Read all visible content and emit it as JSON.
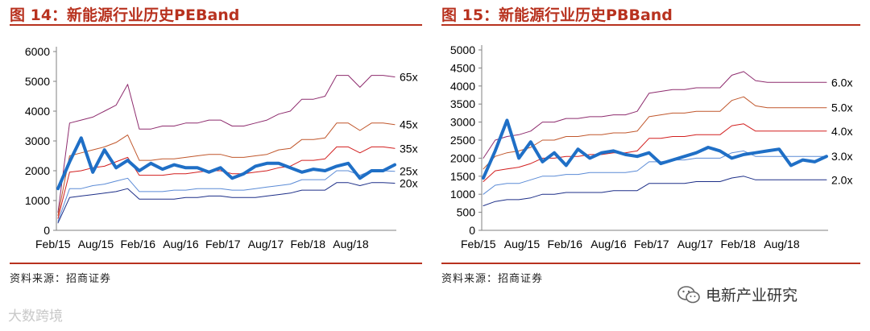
{
  "charts": [
    {
      "title": "图 14：新能源行业历史PEBand",
      "source": "资料来源：招商证券",
      "chart_data": {
        "type": "line",
        "title": "新能源行业历史PEBand",
        "xlabel": "",
        "ylabel": "",
        "ylim": [
          0,
          6000
        ],
        "yticks": [
          0,
          1000,
          2000,
          3000,
          4000,
          5000,
          6000
        ],
        "xticks": [
          "Feb/15",
          "Aug/15",
          "Feb/16",
          "Aug/16",
          "Feb/17",
          "Aug/17",
          "Feb/18",
          "Aug/18"
        ],
        "grid": false,
        "series": [
          {
            "name": "65x",
            "color": "#8e2c6e",
            "width": 1,
            "values": [
              600,
              3600,
              3700,
              3800,
              4000,
              4200,
              4900,
              3400,
              3400,
              3500,
              3500,
              3600,
              3600,
              3700,
              3700,
              3500,
              3500,
              3600,
              3700,
              3900,
              4000,
              4400,
              4400,
              4500,
              5200,
              5200,
              4800,
              5200,
              5200,
              5150
            ]
          },
          {
            "name": "45x",
            "color": "#c0572c",
            "width": 1,
            "values": [
              500,
              2500,
              2600,
              2700,
              2800,
              2950,
              3200,
              2350,
              2350,
              2400,
              2400,
              2450,
              2500,
              2550,
              2550,
              2450,
              2450,
              2500,
              2550,
              2700,
              2750,
              3050,
              3050,
              3100,
              3600,
              3600,
              3350,
              3600,
              3600,
              3550
            ]
          },
          {
            "name": "35x",
            "color": "#d21f1f",
            "width": 1,
            "values": [
              400,
              1950,
              2000,
              2100,
              2150,
              2300,
              2450,
              1850,
              1850,
              1850,
              1900,
              1900,
              1950,
              2000,
              2000,
              1900,
              1900,
              1950,
              2000,
              2100,
              2150,
              2350,
              2350,
              2400,
              2800,
              2800,
              2600,
              2800,
              2800,
              2750
            ]
          },
          {
            "name": "25x",
            "color": "#5b8bd6",
            "width": 1,
            "values": [
              300,
              1400,
              1400,
              1500,
              1550,
              1650,
              1750,
              1300,
              1300,
              1300,
              1350,
              1350,
              1400,
              1400,
              1400,
              1350,
              1350,
              1400,
              1450,
              1500,
              1550,
              1700,
              1700,
              1700,
              2000,
              2000,
              1850,
              2000,
              2000,
              1980
            ]
          },
          {
            "name": "20x",
            "color": "#1d2f88",
            "width": 1,
            "values": [
              250,
              1100,
              1150,
              1200,
              1250,
              1300,
              1400,
              1050,
              1050,
              1050,
              1050,
              1100,
              1100,
              1150,
              1150,
              1100,
              1100,
              1100,
              1150,
              1200,
              1250,
              1350,
              1350,
              1350,
              1600,
              1600,
              1500,
              1600,
              1600,
              1580
            ]
          },
          {
            "name": "",
            "color": "#1f6fc6",
            "width": 4,
            "values": [
              1400,
              2300,
              3100,
              1950,
              2700,
              2100,
              2350,
              2000,
              2250,
              2050,
              2200,
              2100,
              2100,
              1950,
              2100,
              1750,
              1900,
              2150,
              2250,
              2250,
              2100,
              1950,
              2050,
              2000,
              2150,
              2250,
              1750,
              2000,
              2000,
              2200
            ]
          }
        ]
      }
    },
    {
      "title": "图 15：新能源行业历史PBBand",
      "source": "资料来源：招商证券",
      "chart_data": {
        "type": "line",
        "title": "新能源行业历史PBBand",
        "xlabel": "",
        "ylabel": "",
        "ylim": [
          0,
          5000
        ],
        "yticks": [
          0,
          500,
          1000,
          1500,
          2000,
          2500,
          3000,
          3500,
          4000,
          4500,
          5000
        ],
        "xticks": [
          "Feb/15",
          "Aug/15",
          "Feb/16",
          "Aug/16",
          "Feb/17",
          "Aug/17",
          "Feb/18",
          "Aug/18"
        ],
        "grid": false,
        "series": [
          {
            "name": "6.0x",
            "color": "#8e2c6e",
            "width": 1,
            "values": [
              2000,
              2500,
              2600,
              2650,
              2750,
              3000,
              3000,
              3100,
              3100,
              3150,
              3150,
              3200,
              3200,
              3300,
              3800,
              3850,
              3900,
              3900,
              3950,
              3950,
              3950,
              4300,
              4400,
              4150,
              4100,
              4100,
              4100,
              4100,
              4100,
              4100
            ]
          },
          {
            "name": "5.0x",
            "color": "#c0572c",
            "width": 1,
            "values": [
              1700,
              2050,
              2150,
              2200,
              2300,
              2500,
              2500,
              2600,
              2600,
              2650,
              2650,
              2700,
              2700,
              2750,
              3150,
              3200,
              3250,
              3250,
              3300,
              3300,
              3300,
              3600,
              3700,
              3450,
              3400,
              3400,
              3400,
              3400,
              3400,
              3400
            ]
          },
          {
            "name": "4.0x",
            "color": "#d21f1f",
            "width": 1,
            "values": [
              1350,
              1650,
              1700,
              1750,
              1850,
              2000,
              2000,
              2050,
              2050,
              2100,
              2100,
              2150,
              2150,
              2200,
              2550,
              2550,
              2600,
              2600,
              2650,
              2650,
              2650,
              2900,
              2950,
              2750,
              2750,
              2750,
              2750,
              2750,
              2750,
              2750
            ]
          },
          {
            "name": "3.0x",
            "color": "#5b8bd6",
            "width": 1,
            "values": [
              1000,
              1250,
              1300,
              1300,
              1400,
              1500,
              1500,
              1550,
              1550,
              1600,
              1600,
              1600,
              1600,
              1650,
              1900,
              1900,
              1950,
              1950,
              2000,
              2000,
              2000,
              2150,
              2200,
              2050,
              2050,
              2050,
              2050,
              2050,
              2050,
              2050
            ]
          },
          {
            "name": "2.0x",
            "color": "#1d2f88",
            "width": 1,
            "values": [
              680,
              800,
              850,
              850,
              900,
              1000,
              1000,
              1050,
              1050,
              1050,
              1050,
              1100,
              1100,
              1100,
              1300,
              1300,
              1300,
              1300,
              1350,
              1350,
              1350,
              1450,
              1500,
              1400,
              1400,
              1400,
              1400,
              1400,
              1400,
              1400
            ]
          },
          {
            "name": "",
            "color": "#1f6fc6",
            "width": 4,
            "values": [
              1450,
              2200,
              3050,
              2000,
              2450,
              1900,
              2150,
              1800,
              2250,
              2000,
              2150,
              2200,
              2100,
              2050,
              2150,
              1850,
              1950,
              2050,
              2150,
              2300,
              2200,
              2000,
              2100,
              2150,
              2200,
              2250,
              1800,
              1950,
              1900,
              2050
            ]
          }
        ]
      }
    }
  ],
  "footer": {
    "left_text": "大数跨境",
    "right_text": "电新产业研究",
    "icon": "wechat-icon"
  }
}
